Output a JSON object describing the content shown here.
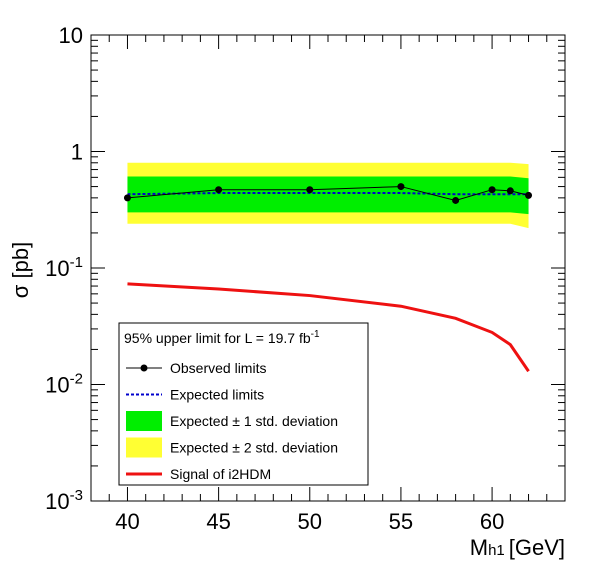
{
  "chart_data": {
    "type": "line",
    "xlabel": "M",
    "xlabel_sub": "h1",
    "xlabel_unit": "[GeV]",
    "ylabel": "σ [pb]",
    "xlim": [
      38,
      64
    ],
    "ylim": [
      0.001,
      10
    ],
    "y_scale": "log",
    "grid": false,
    "x_ticks": [
      40,
      45,
      50,
      55,
      60
    ],
    "x_tick_labels": [
      "40",
      "45",
      "50",
      "55",
      "60"
    ],
    "y_ticks": [
      {
        "value": 10,
        "base": "10",
        "exp": ""
      },
      {
        "value": 1,
        "base": "1",
        "exp": ""
      },
      {
        "value": 0.1,
        "base": "10",
        "exp": "-1"
      },
      {
        "value": 0.01,
        "base": "10",
        "exp": "-2"
      },
      {
        "value": 0.001,
        "base": "10",
        "exp": "-3"
      }
    ],
    "legend": {
      "placement": "lower-left",
      "header": "95% upper limit for L = 19.7 fb",
      "header_sup": "-1",
      "entries": [
        {
          "label": "Observed limits",
          "style": "line-marker",
          "color": "#000000"
        },
        {
          "label": "Expected limits",
          "style": "dashed",
          "color": "#0000cc"
        },
        {
          "label": "Expected ± 1 std. deviation",
          "style": "fill",
          "color": "#00ee00"
        },
        {
          "label": "Expected ± 2 std. deviation",
          "style": "fill",
          "color": "#ffff33"
        },
        {
          "label": "Signal of i2HDM",
          "style": "line",
          "color": "#ee1111"
        }
      ]
    },
    "series": [
      {
        "name": "Observed limits",
        "color": "#000000",
        "x": [
          40,
          45,
          50,
          55,
          58,
          60,
          61,
          62
        ],
        "y": [
          0.4,
          0.47,
          0.47,
          0.5,
          0.38,
          0.47,
          0.46,
          0.42
        ]
      },
      {
        "name": "Expected limits",
        "color": "#0000cc",
        "x": [
          40,
          45,
          50,
          55,
          58,
          60,
          61,
          62
        ],
        "y": [
          0.43,
          0.44,
          0.44,
          0.44,
          0.43,
          0.43,
          0.43,
          0.43
        ]
      },
      {
        "name": "Expected ± 1 std. deviation",
        "color": "#00ee00",
        "x": [
          40,
          45,
          50,
          55,
          58,
          60,
          61,
          62
        ],
        "low": [
          0.3,
          0.3,
          0.3,
          0.3,
          0.3,
          0.3,
          0.3,
          0.29
        ],
        "high": [
          0.61,
          0.61,
          0.61,
          0.61,
          0.61,
          0.61,
          0.61,
          0.59
        ]
      },
      {
        "name": "Expected ± 2 std. deviation",
        "color": "#ffff33",
        "x": [
          40,
          45,
          50,
          55,
          58,
          60,
          61,
          62
        ],
        "low": [
          0.24,
          0.24,
          0.24,
          0.24,
          0.24,
          0.24,
          0.24,
          0.22
        ],
        "high": [
          0.8,
          0.8,
          0.8,
          0.8,
          0.8,
          0.8,
          0.8,
          0.78
        ]
      },
      {
        "name": "Signal of i2HDM",
        "color": "#ee1111",
        "x": [
          40,
          45,
          50,
          55,
          58,
          60,
          61,
          62
        ],
        "y": [
          0.073,
          0.066,
          0.058,
          0.047,
          0.037,
          0.028,
          0.022,
          0.013
        ]
      }
    ]
  }
}
